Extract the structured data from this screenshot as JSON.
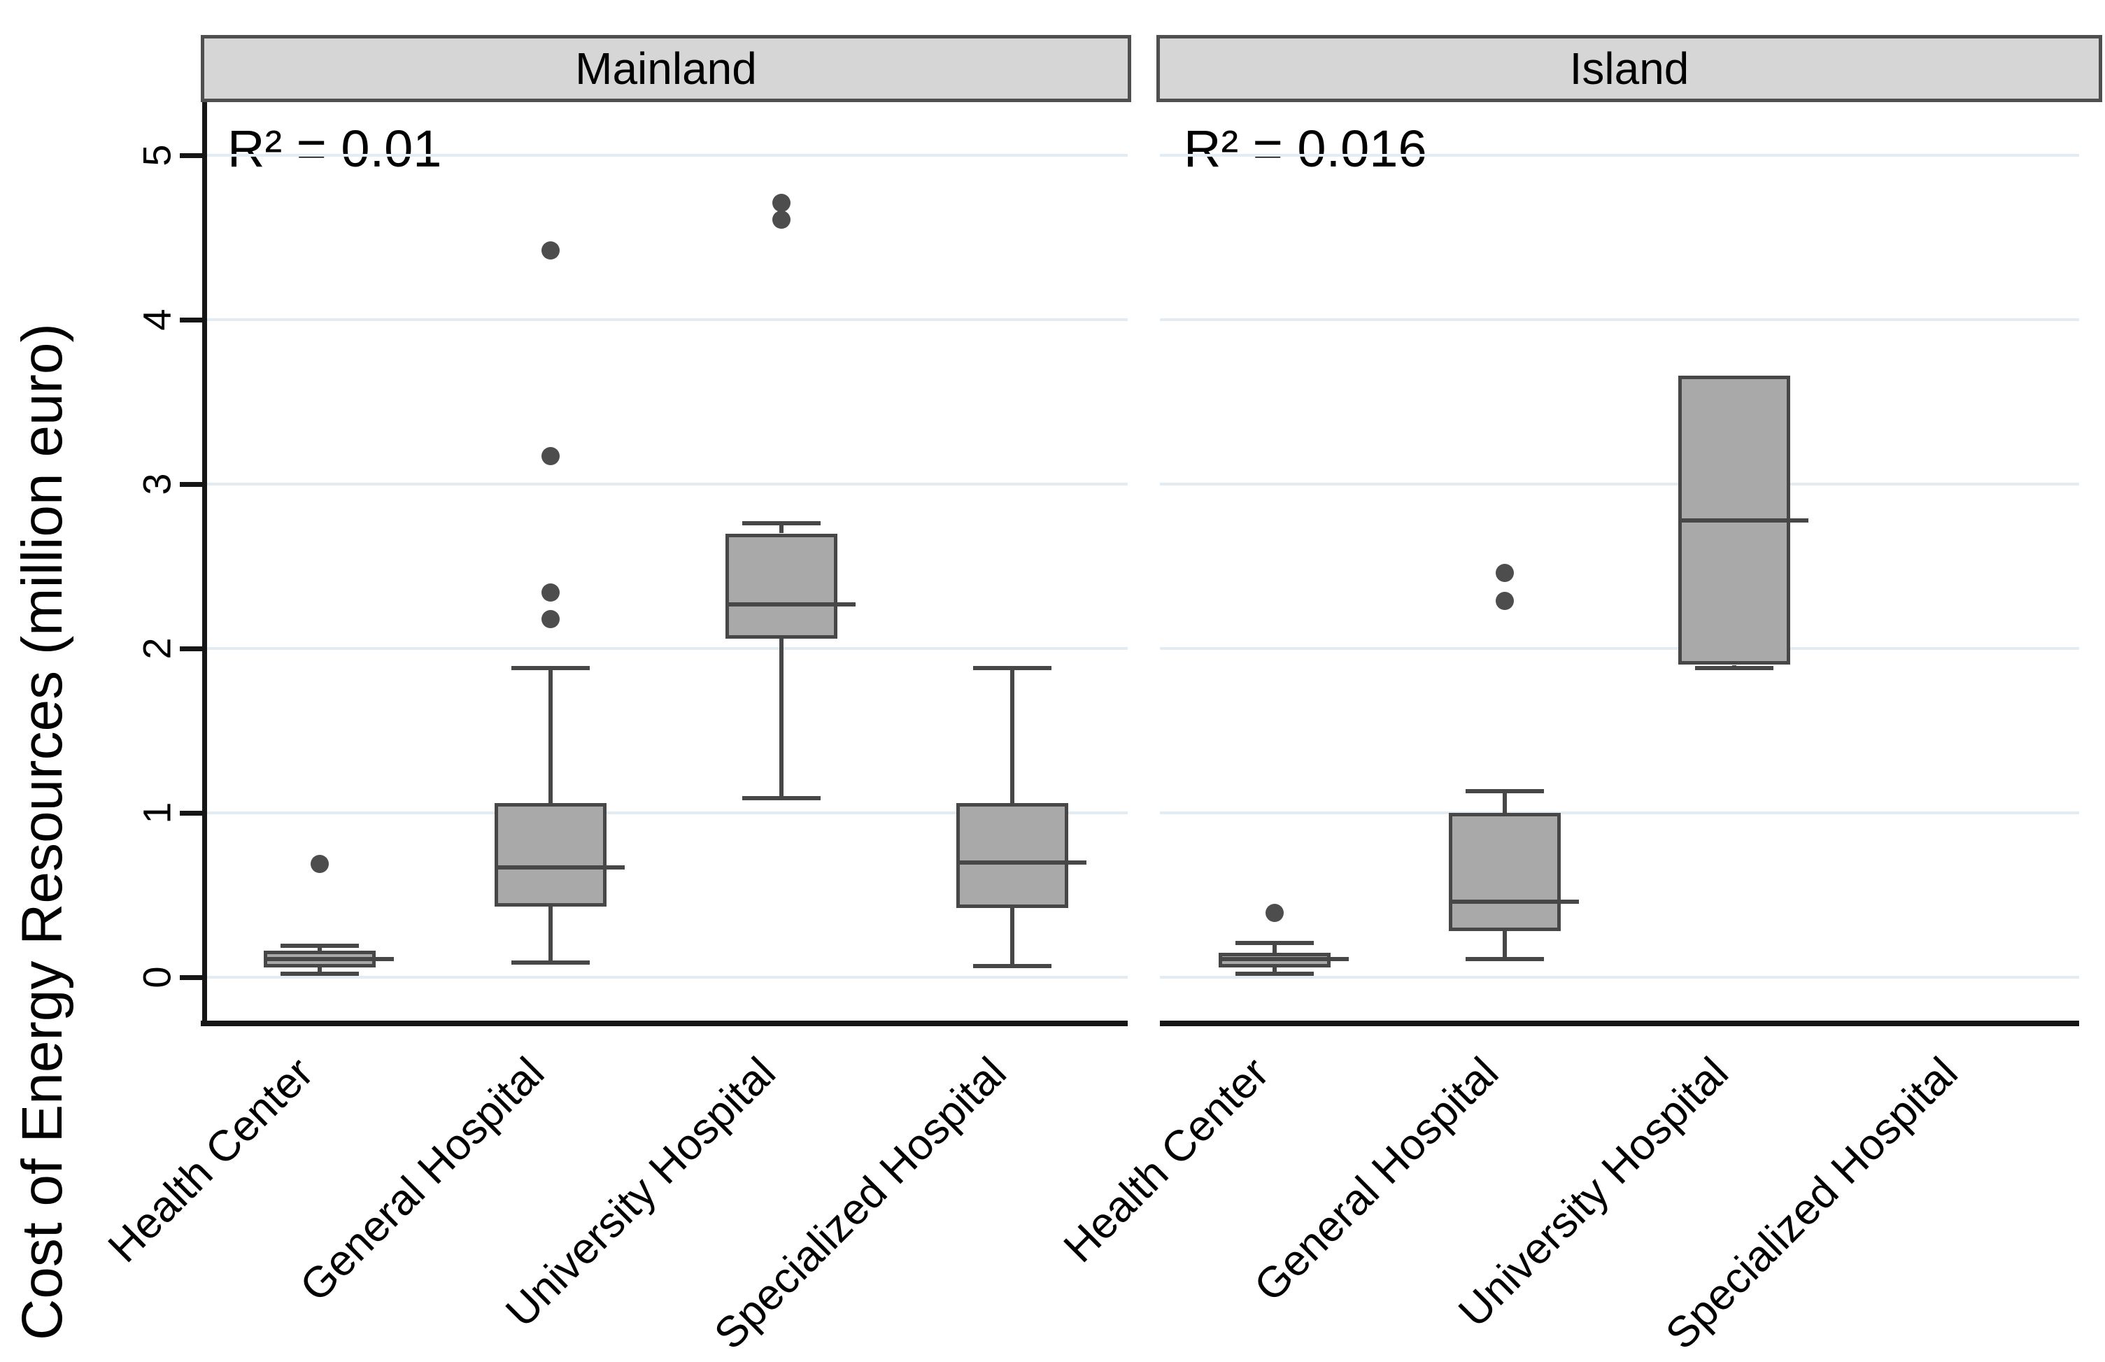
{
  "chart_data": {
    "type": "boxplot",
    "facets": 2,
    "ylabel": "Cost of Energy Resources (million euro)",
    "yticks": [
      0,
      1,
      2,
      3,
      4,
      5
    ],
    "ylim": [
      -0.28,
      5.6
    ],
    "grid": "horizontal light blue lines at each integer tick",
    "legend_position": "none",
    "categories": [
      "Health Center",
      "General Hospital",
      "University Hospital",
      "Specialized Hospital"
    ],
    "colors": {
      "box_fill": "#a9a9a9",
      "box_border": "#474747",
      "outlier": "#4d4d4d",
      "header_fill": "#d6d6d6",
      "header_border": "#4f4f4f",
      "gridline": "#e2ecf2",
      "axis": "#161616"
    },
    "panels": [
      {
        "label": "Mainland",
        "r2_label": "R² = 0.01",
        "boxes": [
          {
            "category": "Health Center",
            "whisker_low": 0.02,
            "q1": 0.06,
            "median": 0.11,
            "q3": 0.16,
            "whisker_high": 0.19,
            "outliers": [
              0.69
            ]
          },
          {
            "category": "General Hospital",
            "whisker_low": 0.09,
            "q1": 0.43,
            "median": 0.67,
            "q3": 1.06,
            "whisker_high": 1.88,
            "outliers": [
              2.18,
              2.34,
              3.17,
              4.42
            ]
          },
          {
            "category": "University Hospital",
            "whisker_low": 1.09,
            "q1": 2.06,
            "median": 2.27,
            "q3": 2.7,
            "whisker_high": 2.76,
            "outliers": [
              4.61,
              4.71
            ]
          },
          {
            "category": "Specialized Hospital",
            "whisker_low": 0.07,
            "q1": 0.42,
            "median": 0.7,
            "q3": 1.06,
            "whisker_high": 1.88,
            "outliers": []
          }
        ]
      },
      {
        "label": "Island",
        "r2_label": "R² = 0.016",
        "boxes": [
          {
            "category": "Health Center",
            "whisker_low": 0.02,
            "q1": 0.06,
            "median": 0.11,
            "q3": 0.15,
            "whisker_high": 0.21,
            "outliers": [
              0.39
            ]
          },
          {
            "category": "General Hospital",
            "whisker_low": 0.11,
            "q1": 0.28,
            "median": 0.46,
            "q3": 1.0,
            "whisker_high": 1.13,
            "outliers": [
              2.29,
              2.46
            ]
          },
          {
            "category": "University Hospital",
            "whisker_low": 1.88,
            "q1": 1.9,
            "median": 2.78,
            "q3": 3.66,
            "whisker_high": 3.66,
            "outliers": []
          },
          null
        ]
      }
    ]
  }
}
